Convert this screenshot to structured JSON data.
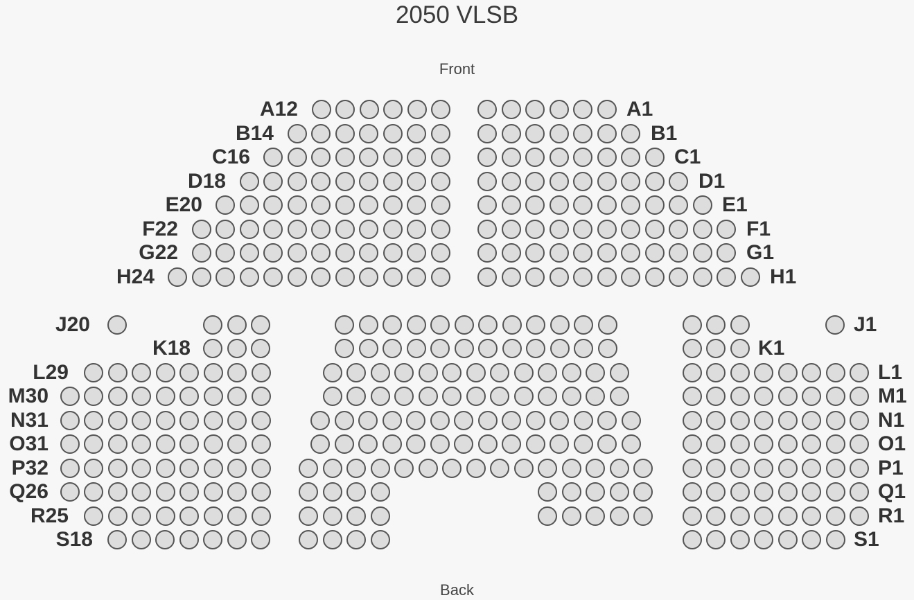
{
  "title": "2050 VLSB",
  "front_label": "Front",
  "back_label": "Back",
  "colors": {
    "background": "#f7f7f7",
    "seat_fill": "#dddddd",
    "seat_border": "#555555",
    "text": "#333333"
  },
  "rows": [
    {
      "row": "A",
      "first_seat": "A1",
      "last_seat": "A12"
    },
    {
      "row": "B",
      "first_seat": "B1",
      "last_seat": "B14"
    },
    {
      "row": "C",
      "first_seat": "C1",
      "last_seat": "C16"
    },
    {
      "row": "D",
      "first_seat": "D1",
      "last_seat": "D18"
    },
    {
      "row": "E",
      "first_seat": "E1",
      "last_seat": "E20"
    },
    {
      "row": "F",
      "first_seat": "F1",
      "last_seat": "F22"
    },
    {
      "row": "G",
      "first_seat": "G1",
      "last_seat": "G22"
    },
    {
      "row": "H",
      "first_seat": "H1",
      "last_seat": "H24"
    },
    {
      "row": "J",
      "first_seat": "J1",
      "last_seat": "J20"
    },
    {
      "row": "K",
      "first_seat": "K1",
      "last_seat": "K18"
    },
    {
      "row": "L",
      "first_seat": "L1",
      "last_seat": "L29"
    },
    {
      "row": "M",
      "first_seat": "M1",
      "last_seat": "M30"
    },
    {
      "row": "N",
      "first_seat": "N1",
      "last_seat": "N31"
    },
    {
      "row": "O",
      "first_seat": "O1",
      "last_seat": "O31"
    },
    {
      "row": "P",
      "first_seat": "P1",
      "last_seat": "P32"
    },
    {
      "row": "Q",
      "first_seat": "Q1",
      "last_seat": "Q26"
    },
    {
      "row": "R",
      "first_seat": "R1",
      "last_seat": "R25"
    },
    {
      "row": "S",
      "first_seat": "S1",
      "last_seat": "S18"
    }
  ]
}
